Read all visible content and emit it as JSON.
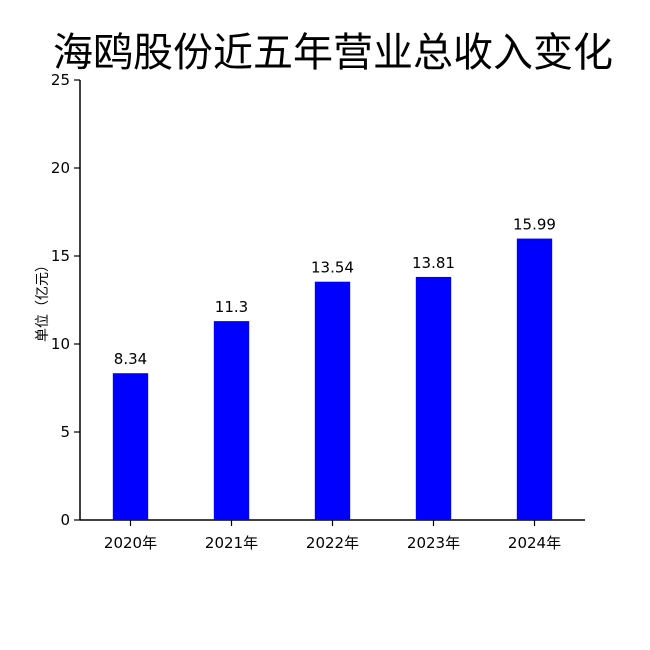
{
  "chart_data": {
    "type": "bar",
    "title": "海鸥股份近五年营业总收入变化",
    "xlabel": "",
    "ylabel": "单位（亿元）",
    "categories": [
      "2020年",
      "2021年",
      "2022年",
      "2023年",
      "2024年"
    ],
    "values": [
      8.34,
      11.3,
      13.54,
      13.81,
      15.99
    ],
    "data_labels": [
      "8.34",
      "11.3",
      "13.54",
      "13.81",
      "15.99"
    ],
    "ylim": [
      0,
      25
    ],
    "yticks": [
      "0",
      "5",
      "10",
      "15",
      "20",
      "25"
    ],
    "grid": false,
    "legend": "none",
    "bar_color": "#0000ff"
  }
}
